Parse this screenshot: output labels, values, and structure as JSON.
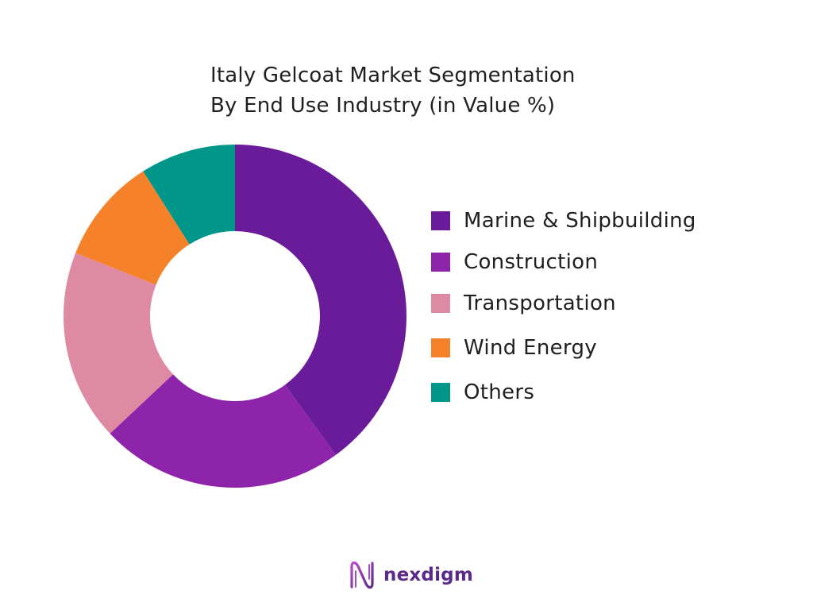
{
  "header": {
    "title_line1": "Italy Gelcoat Market Segmentation",
    "title_line2": "By End Use Industry (in Value %)"
  },
  "chart_data": {
    "type": "pie",
    "variant": "donut",
    "title": "Italy Gelcoat Market Segmentation By End Use Industry (in Value %)",
    "categories": [
      "Marine & Shipbuilding",
      "Construction",
      "Transportation",
      "Wind Energy",
      "Others"
    ],
    "values": [
      40,
      23,
      18,
      10,
      9
    ],
    "unit": "%",
    "colors": [
      "#6a1b9a",
      "#8e24aa",
      "#de8aa2",
      "#f5822a",
      "#00968a"
    ],
    "legend_position": "right",
    "start_angle": "top, clockwise"
  },
  "legend": {
    "items": [
      {
        "label": "Marine & Shipbuilding",
        "color": "#6a1b9a"
      },
      {
        "label": "Construction",
        "color": "#8e24aa"
      },
      {
        "label": "Transportation",
        "color": "#de8aa2"
      },
      {
        "label": "Wind Energy",
        "color": "#f5822a"
      },
      {
        "label": "Others",
        "color": "#00968a"
      }
    ]
  },
  "brand": {
    "name": "nexdigm",
    "icon": "nexdigm-logo-icon"
  }
}
